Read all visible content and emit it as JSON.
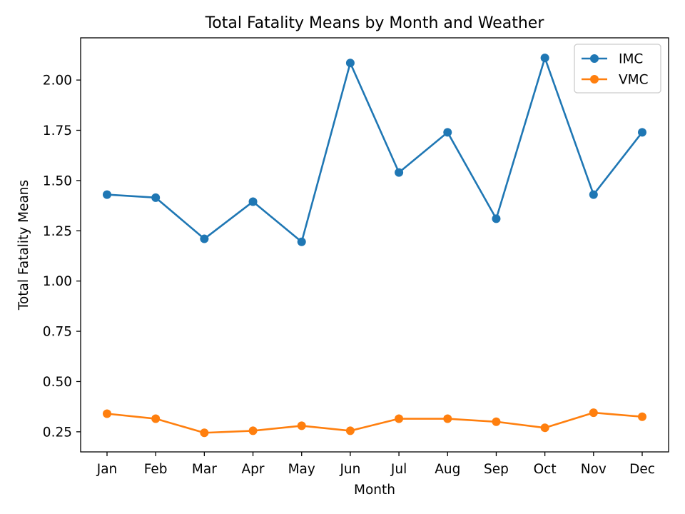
{
  "chart_data": {
    "type": "line",
    "title": "Total Fatality Means by Month and Weather",
    "xlabel": "Month",
    "ylabel": "Total Fatality Means",
    "categories": [
      "Jan",
      "Feb",
      "Mar",
      "Apr",
      "May",
      "Jun",
      "Jul",
      "Aug",
      "Sep",
      "Oct",
      "Nov",
      "Dec"
    ],
    "series": [
      {
        "name": "IMC",
        "color": "#1f77b4",
        "values": [
          1.43,
          1.415,
          1.21,
          1.395,
          1.195,
          2.085,
          1.54,
          1.74,
          1.31,
          2.11,
          1.43,
          1.74
        ]
      },
      {
        "name": "VMC",
        "color": "#ff7f0e",
        "values": [
          0.34,
          0.315,
          0.245,
          0.255,
          0.28,
          0.255,
          0.315,
          0.315,
          0.3,
          0.27,
          0.345,
          0.325
        ]
      }
    ],
    "ylim": [
      0.15,
      2.21
    ],
    "yticks": [
      0.25,
      0.5,
      0.75,
      1.0,
      1.25,
      1.5,
      1.75,
      2.0
    ],
    "ytick_labels": [
      "0.25",
      "0.50",
      "0.75",
      "1.00",
      "1.25",
      "1.50",
      "1.75",
      "2.00"
    ],
    "grid": false,
    "legend_position": "top-right",
    "markers": "circle"
  }
}
